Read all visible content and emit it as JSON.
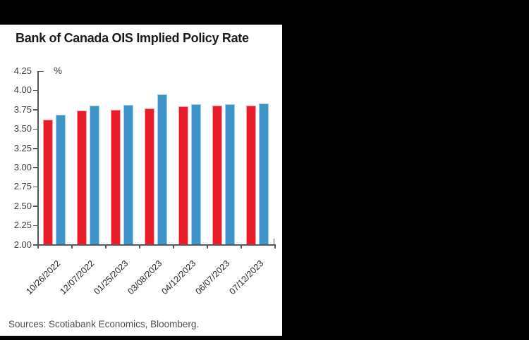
{
  "frame": {
    "background_color": "#000000",
    "panel_color": "#ffffff"
  },
  "chart": {
    "title": "Bank of Canada OIS Implied Policy Rate",
    "unit_label": "%",
    "source": "Sources: Scotiabank Economics, Bloomberg."
  },
  "chart_data": {
    "type": "bar",
    "title": "Bank of Canada OIS Implied Policy Rate",
    "ylabel": "%",
    "xlabel": "",
    "categories": [
      "10/26/2022",
      "12/07/2022",
      "01/25/2023",
      "03/08/2023",
      "04/12/2023",
      "06/07/2023",
      "07/12/2023"
    ],
    "series": [
      {
        "name": "red-series",
        "color": "#E91C2C",
        "edge_color": "#F4A3AA",
        "values": [
          3.62,
          3.73,
          3.74,
          3.76,
          3.79,
          3.8,
          3.8
        ]
      },
      {
        "name": "blue-series",
        "color": "#3E94C9",
        "edge_color": "#A9CEE7",
        "values": [
          3.68,
          3.8,
          3.81,
          3.94,
          3.82,
          3.82,
          3.83
        ]
      }
    ],
    "ylim": [
      2.0,
      4.25
    ],
    "ytick_step": 0.25,
    "ytick_labels": [
      "4.25",
      "4.00",
      "3.75",
      "3.50",
      "3.25",
      "3.00",
      "2.75",
      "2.50",
      "2.25",
      "2.00"
    ],
    "grid": false,
    "legend_position": "none",
    "axis_color": "#57585a",
    "tick_text_color": "#414042",
    "xtick_rotation_deg": 45
  }
}
